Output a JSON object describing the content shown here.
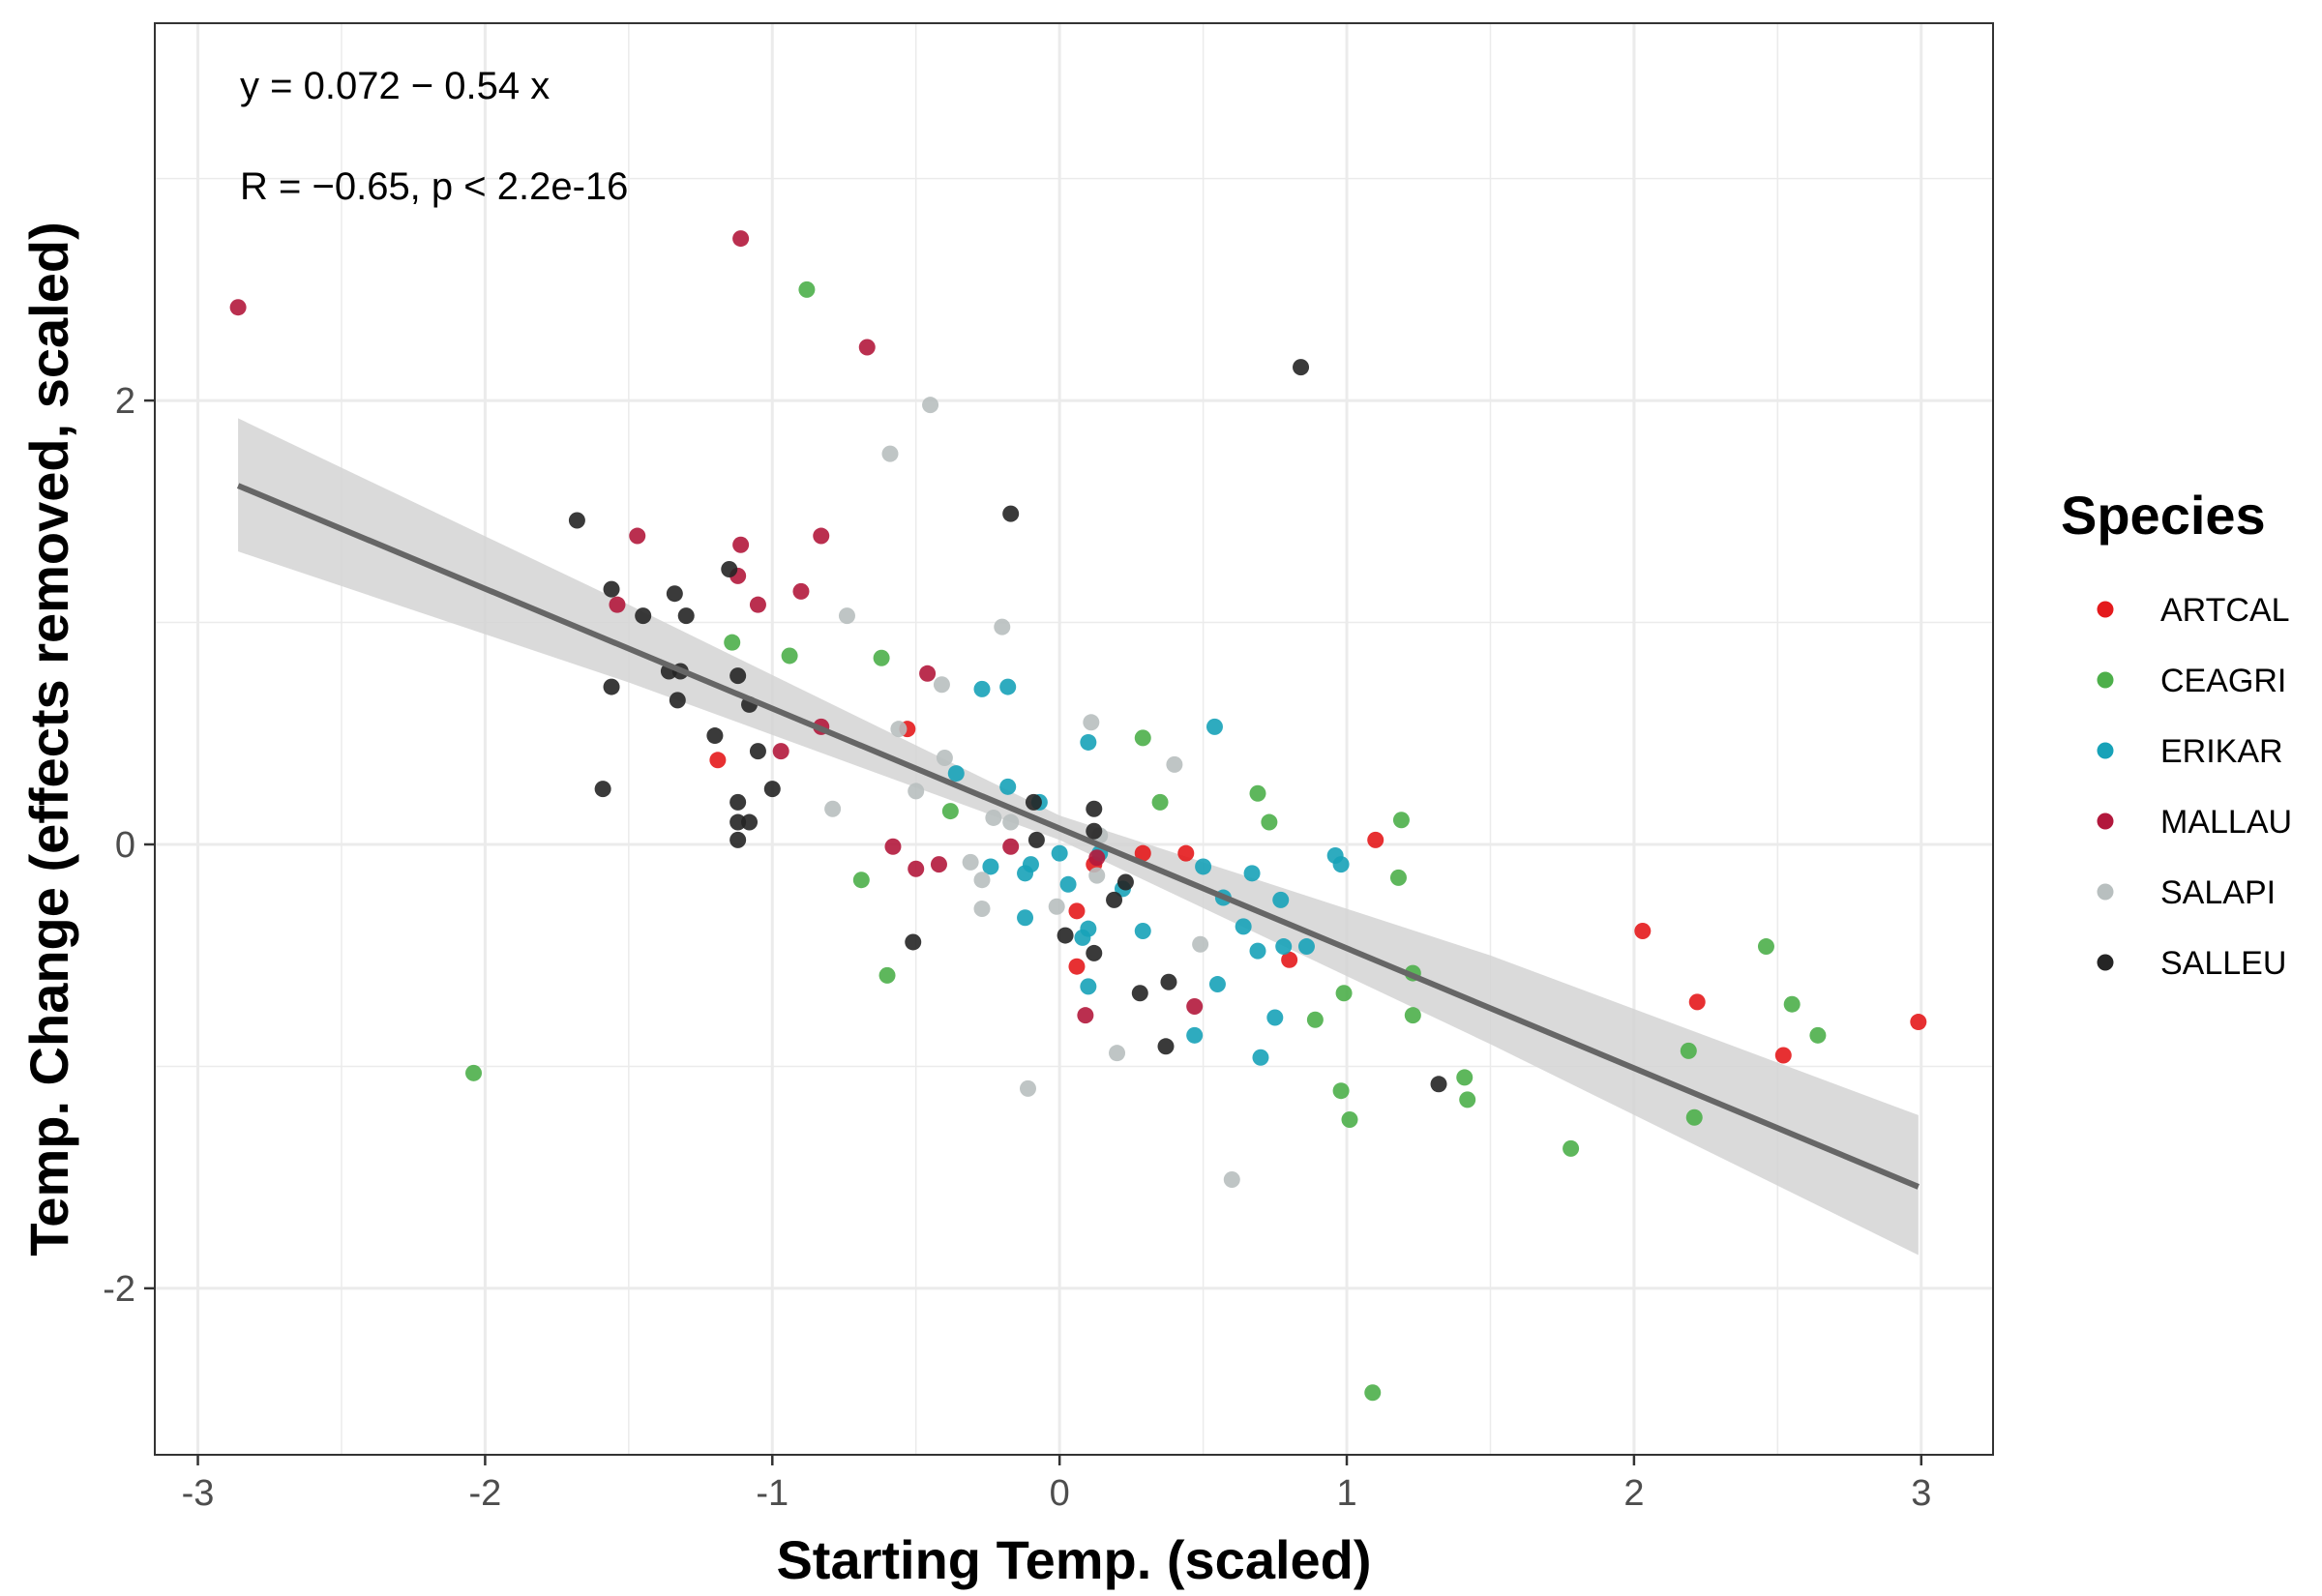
{
  "chart_data": {
    "type": "scatter",
    "xlabel": "Starting Temp. (scaled)",
    "ylabel": "Temp. Change (effects removed, scaled)",
    "xlim": [
      -3.15,
      3.25
    ],
    "ylim": [
      -2.75,
      3.7
    ],
    "x_ticks": [
      -3,
      -2,
      -1,
      0,
      1,
      2,
      3
    ],
    "y_ticks": [
      -2,
      0,
      2
    ],
    "x_tick_labels": [
      "-3",
      "-2",
      "-1",
      "0",
      "1",
      "2",
      "3"
    ],
    "y_tick_labels": [
      "-2",
      "0",
      "2"
    ],
    "grid": true,
    "annotations": [
      "y = 0.072 − 0.54 x",
      "R = −0.65, p < 2.2e-16"
    ],
    "regression": {
      "intercept": 0.072,
      "slope": -0.54,
      "x_range": [
        -2.86,
        2.99
      ],
      "color": "#666666"
    },
    "confidence_band": {
      "x": [
        -2.86,
        -1.5,
        0,
        1.5,
        2.99
      ],
      "lower": [
        1.32,
        0.73,
        0.02,
        -0.9,
        -1.85
      ],
      "upper": [
        1.92,
        1.08,
        0.13,
        -0.5,
        -1.22
      ],
      "color": "#d3d3d3"
    },
    "legend": {
      "title": "Species",
      "placement": "right"
    },
    "series": [
      {
        "name": "ARTCAL",
        "color": "#e41a1c",
        "points": [
          [
            -0.53,
            0.52
          ],
          [
            -1.19,
            0.38
          ],
          [
            0.29,
            -0.04
          ],
          [
            0.44,
            -0.04
          ],
          [
            1.1,
            0.02
          ],
          [
            0.06,
            -0.3
          ],
          [
            0.12,
            -0.09
          ],
          [
            0.06,
            -0.55
          ],
          [
            0.8,
            -0.52
          ],
          [
            2.03,
            -0.39
          ],
          [
            2.22,
            -0.71
          ],
          [
            2.52,
            -0.95
          ],
          [
            2.99,
            -0.8
          ]
        ]
      },
      {
        "name": "CEAGRI",
        "color": "#4daf4a",
        "points": [
          [
            -0.88,
            2.5
          ],
          [
            -1.14,
            0.91
          ],
          [
            -0.94,
            0.85
          ],
          [
            -0.62,
            0.84
          ],
          [
            0.29,
            0.48
          ],
          [
            0.35,
            0.19
          ],
          [
            0.69,
            0.23
          ],
          [
            0.73,
            0.1
          ],
          [
            1.19,
            0.11
          ],
          [
            1.18,
            -0.15
          ],
          [
            -0.38,
            0.15
          ],
          [
            -0.69,
            -0.16
          ],
          [
            -0.6,
            -0.59
          ],
          [
            -2.04,
            -1.03
          ],
          [
            1.23,
            -0.58
          ],
          [
            1.23,
            -0.77
          ],
          [
            0.99,
            -0.67
          ],
          [
            0.89,
            -0.79
          ],
          [
            0.98,
            -1.11
          ],
          [
            1.01,
            -1.24
          ],
          [
            1.41,
            -1.05
          ],
          [
            1.42,
            -1.15
          ],
          [
            1.78,
            -1.37
          ],
          [
            2.19,
            -0.93
          ],
          [
            2.21,
            -1.23
          ],
          [
            2.46,
            -0.46
          ],
          [
            2.55,
            -0.72
          ],
          [
            2.64,
            -0.86
          ],
          [
            1.09,
            -2.47
          ]
        ]
      },
      {
        "name": "ERIKAR",
        "color": "#17a2b8",
        "points": [
          [
            -0.27,
            0.7
          ],
          [
            -0.18,
            0.71
          ],
          [
            0.1,
            0.46
          ],
          [
            -0.36,
            0.32
          ],
          [
            -0.18,
            0.26
          ],
          [
            -0.07,
            0.19
          ],
          [
            0.54,
            0.53
          ],
          [
            0.0,
            -0.04
          ],
          [
            -0.1,
            -0.09
          ],
          [
            -0.12,
            -0.13
          ],
          [
            -0.24,
            -0.1
          ],
          [
            0.03,
            -0.18
          ],
          [
            0.22,
            -0.2
          ],
          [
            0.5,
            -0.1
          ],
          [
            0.67,
            -0.13
          ],
          [
            0.57,
            -0.24
          ],
          [
            0.77,
            -0.25
          ],
          [
            0.1,
            -0.38
          ],
          [
            0.08,
            -0.42
          ],
          [
            0.29,
            -0.39
          ],
          [
            0.64,
            -0.37
          ],
          [
            0.69,
            -0.48
          ],
          [
            0.78,
            -0.46
          ],
          [
            0.86,
            -0.46
          ],
          [
            0.96,
            -0.05
          ],
          [
            0.98,
            -0.09
          ],
          [
            0.1,
            -0.64
          ],
          [
            0.55,
            -0.63
          ],
          [
            0.75,
            -0.78
          ],
          [
            0.47,
            -0.86
          ],
          [
            0.7,
            -0.96
          ],
          [
            -0.12,
            -0.33
          ],
          [
            0.14,
            -0.04
          ]
        ]
      },
      {
        "name": "MALLAU",
        "color": "#b2183c",
        "points": [
          [
            -2.86,
            2.42
          ],
          [
            -1.11,
            2.73
          ],
          [
            -0.67,
            2.24
          ],
          [
            -1.47,
            1.39
          ],
          [
            -1.11,
            1.35
          ],
          [
            -1.12,
            1.21
          ],
          [
            -0.83,
            1.39
          ],
          [
            -1.54,
            1.08
          ],
          [
            -1.05,
            1.08
          ],
          [
            -0.9,
            1.14
          ],
          [
            -0.46,
            0.77
          ],
          [
            -0.83,
            0.53
          ],
          [
            -0.97,
            0.42
          ],
          [
            -0.58,
            -0.01
          ],
          [
            -0.17,
            -0.01
          ],
          [
            -0.5,
            -0.11
          ],
          [
            -0.42,
            -0.09
          ],
          [
            0.13,
            -0.06
          ],
          [
            0.09,
            -0.77
          ],
          [
            0.47,
            -0.73
          ]
        ]
      },
      {
        "name": "SALAPI",
        "color": "#b8bfbf",
        "points": [
          [
            -0.45,
            1.98
          ],
          [
            -0.59,
            1.76
          ],
          [
            -0.74,
            1.03
          ],
          [
            -0.2,
            0.98
          ],
          [
            -0.41,
            0.72
          ],
          [
            -0.56,
            0.52
          ],
          [
            0.11,
            0.55
          ],
          [
            -0.4,
            0.39
          ],
          [
            0.4,
            0.36
          ],
          [
            -0.5,
            0.24
          ],
          [
            -0.79,
            0.16
          ],
          [
            -0.23,
            0.12
          ],
          [
            0.14,
            0.04
          ],
          [
            -0.17,
            0.1
          ],
          [
            -0.31,
            -0.08
          ],
          [
            -0.27,
            -0.16
          ],
          [
            -0.27,
            -0.29
          ],
          [
            -0.01,
            -0.28
          ],
          [
            0.13,
            -0.14
          ],
          [
            0.49,
            -0.45
          ],
          [
            0.2,
            -0.94
          ],
          [
            -0.11,
            -1.1
          ],
          [
            0.6,
            -1.51
          ]
        ]
      },
      {
        "name": "SALLEU",
        "color": "#252525",
        "points": [
          [
            -1.68,
            1.46
          ],
          [
            -0.17,
            1.49
          ],
          [
            -1.56,
            1.15
          ],
          [
            -1.34,
            1.13
          ],
          [
            -1.45,
            1.03
          ],
          [
            -1.3,
            1.03
          ],
          [
            -1.15,
            1.24
          ],
          [
            -1.36,
            0.78
          ],
          [
            -1.32,
            0.78
          ],
          [
            -1.12,
            0.76
          ],
          [
            -1.56,
            0.71
          ],
          [
            -1.33,
            0.65
          ],
          [
            -1.08,
            0.63
          ],
          [
            -1.2,
            0.49
          ],
          [
            -1.05,
            0.42
          ],
          [
            -1.59,
            0.25
          ],
          [
            -1.0,
            0.25
          ],
          [
            -1.12,
            0.19
          ],
          [
            -1.12,
            0.1
          ],
          [
            -1.08,
            0.1
          ],
          [
            -1.12,
            0.02
          ],
          [
            -0.09,
            0.19
          ],
          [
            0.12,
            0.16
          ],
          [
            -0.08,
            0.02
          ],
          [
            0.12,
            0.06
          ],
          [
            0.23,
            -0.17
          ],
          [
            0.19,
            -0.25
          ],
          [
            0.02,
            -0.41
          ],
          [
            0.12,
            -0.49
          ],
          [
            -0.51,
            -0.44
          ],
          [
            0.28,
            -0.67
          ],
          [
            0.38,
            -0.62
          ],
          [
            0.37,
            -0.91
          ],
          [
            1.32,
            -1.08
          ],
          [
            0.84,
            2.15
          ]
        ]
      }
    ]
  }
}
